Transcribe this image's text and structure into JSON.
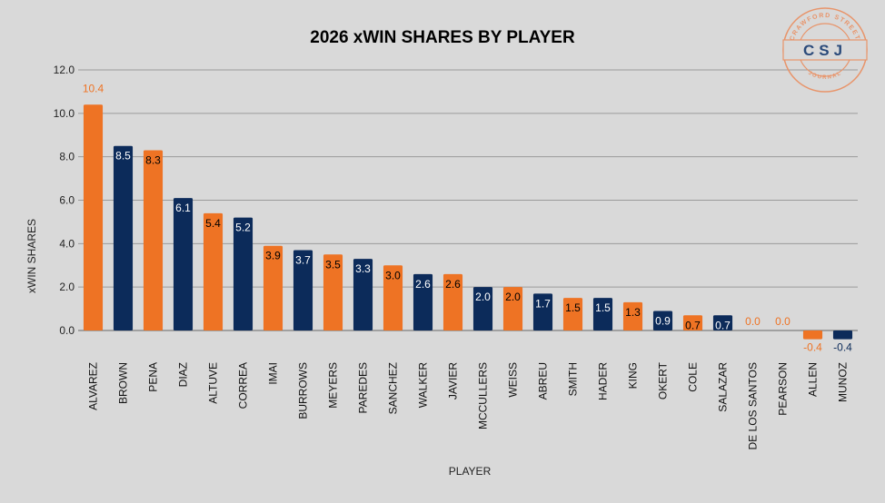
{
  "chart_data": {
    "type": "bar",
    "title": "2026 xWIN SHARES BY PLAYER",
    "xlabel": "PLAYER",
    "ylabel": "xWIN SHARES",
    "ylim": [
      -0.4,
      12.0
    ],
    "yticks": [
      "0.0",
      "2.0",
      "4.0",
      "6.0",
      "8.0",
      "10.0",
      "12.0"
    ],
    "grid": true,
    "categories": [
      "ALVAREZ",
      "BROWN",
      "PENA",
      "DIAZ",
      "ALTUVE",
      "CORREA",
      "IMAI",
      "BURROWS",
      "MEYERS",
      "PAREDES",
      "SANCHEZ",
      "WALKER",
      "JAVIER",
      "MCCULLERS",
      "WEISS",
      "ABREU",
      "SMITH",
      "HADER",
      "KING",
      "OKERT",
      "COLE",
      "SALAZAR",
      "DE LOS SANTOS",
      "PEARSON",
      "ALLEN",
      "MUNOZ"
    ],
    "values": [
      10.4,
      8.5,
      8.3,
      6.1,
      5.4,
      5.2,
      3.9,
      3.7,
      3.5,
      3.3,
      3.0,
      2.6,
      2.6,
      2.0,
      2.0,
      1.7,
      1.5,
      1.5,
      1.3,
      0.9,
      0.7,
      0.7,
      0.0,
      0.0,
      -0.4,
      -0.4
    ],
    "bar_colors": [
      "orange",
      "navy",
      "orange",
      "navy",
      "orange",
      "navy",
      "orange",
      "navy",
      "orange",
      "navy",
      "orange",
      "navy",
      "orange",
      "navy",
      "orange",
      "navy",
      "orange",
      "navy",
      "orange",
      "navy",
      "orange",
      "navy",
      "orange",
      "orange",
      "orange",
      "navy"
    ],
    "colors": {
      "orange": "#ee7324",
      "navy": "#0c2b5a"
    }
  },
  "logo": {
    "top_text": "CRAWFORD STREET",
    "center_text": "CSJ",
    "bottom_text": "JOURNAL",
    "color": "#e8946a"
  }
}
